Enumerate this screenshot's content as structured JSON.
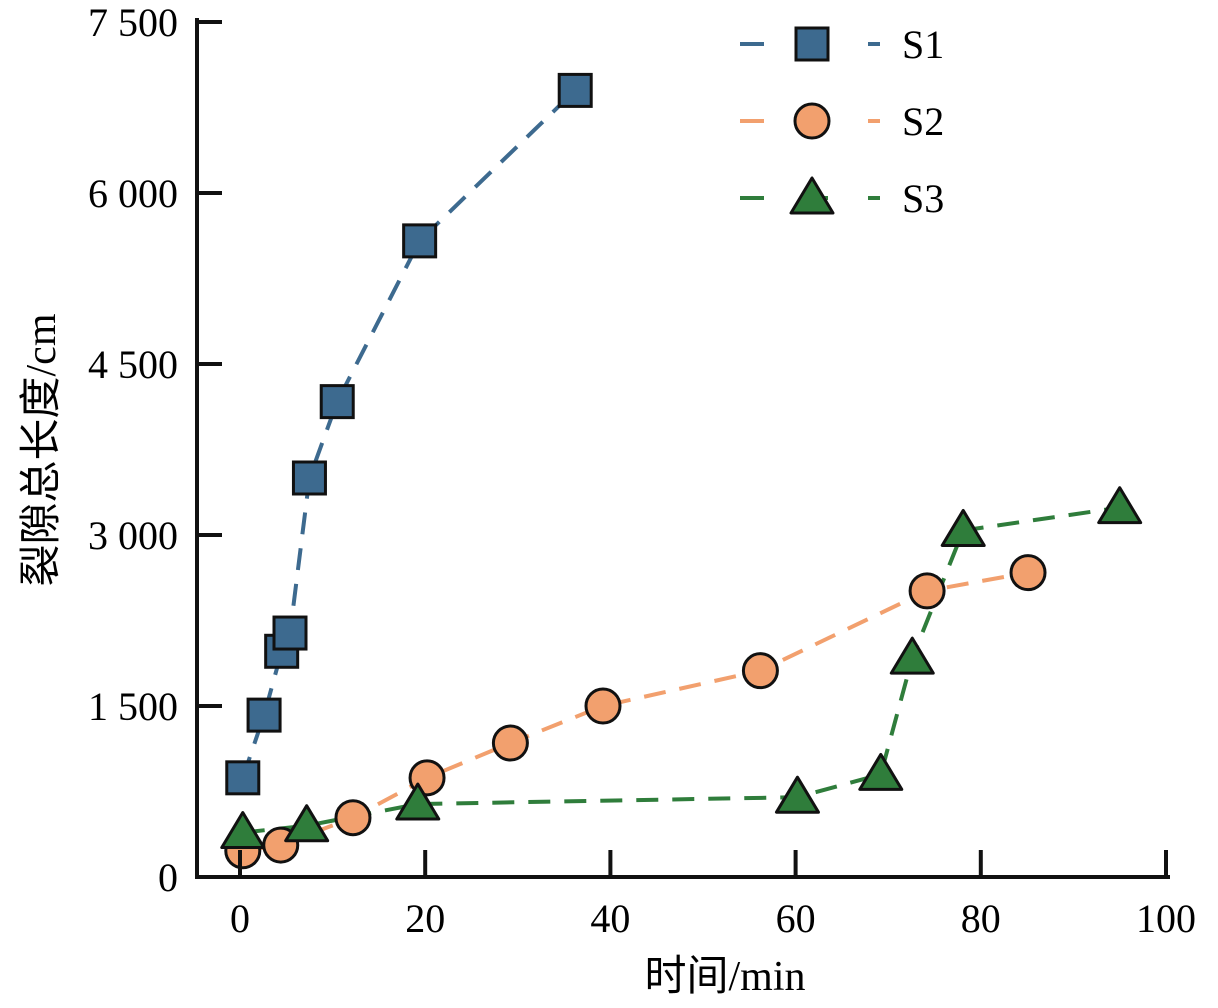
{
  "chart_data": {
    "type": "line",
    "title": "",
    "xlabel": "时间/min",
    "ylabel": "裂隙总长度/cm",
    "xlim": [
      -5,
      100
    ],
    "ylim": [
      0,
      7500
    ],
    "xticks": [
      0,
      20,
      40,
      60,
      80,
      100
    ],
    "xtick_labels": [
      "0",
      "20",
      "40",
      "60",
      "80",
      "100"
    ],
    "yticks": [
      0,
      1500,
      3000,
      4500,
      6000,
      7500
    ],
    "ytick_labels": [
      "0",
      "1 500",
      "3 000",
      "4 500",
      "6 000",
      "7 500"
    ],
    "grid": false,
    "legend_position": "top-right",
    "series": [
      {
        "name": "S1",
        "marker": "square",
        "color": "#3d6a8f",
        "x": [
          0.3,
          2.6,
          4.5,
          5.4,
          7.5,
          10.5,
          19.4,
          36.2
        ],
        "y": [
          870,
          1420,
          1980,
          2140,
          3500,
          4170,
          5580,
          6900
        ]
      },
      {
        "name": "S2",
        "marker": "circle",
        "color": "#f2a06e",
        "x": [
          0.3,
          4.4,
          12.2,
          20.2,
          29.2,
          39.2,
          56.2,
          74.2,
          85.1
        ],
        "y": [
          230,
          280,
          520,
          870,
          1175,
          1500,
          1810,
          2510,
          2670
        ]
      },
      {
        "name": "S3",
        "marker": "triangle",
        "color": "#2f7d3b",
        "x": [
          0.3,
          7.2,
          19.2,
          60.2,
          69.2,
          72.6,
          78.1,
          95.0
        ],
        "y": [
          390,
          450,
          640,
          700,
          900,
          1920,
          3040,
          3240
        ]
      }
    ]
  }
}
